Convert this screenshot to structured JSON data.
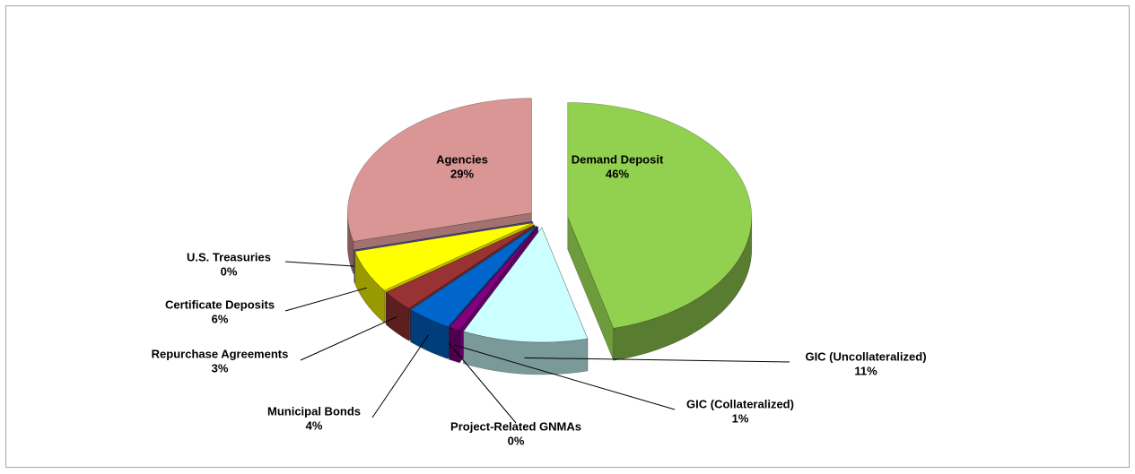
{
  "chart_data": {
    "type": "pie",
    "categories": [
      "Demand Deposit",
      "GIC (Uncollateralized)",
      "GIC (Collateralized)",
      "Project-Related GNMAs",
      "Municipal Bonds",
      "Repurchase Agreements",
      "Certificate Deposits",
      "U.S. Treasuries",
      "Agencies"
    ],
    "values": [
      46,
      11,
      1,
      0,
      4,
      3,
      6,
      0,
      29
    ],
    "value_labels": [
      "46%",
      "11%",
      "1%",
      "0%",
      "4%",
      "3%",
      "6%",
      "0%",
      "29%"
    ],
    "colors": [
      "#92d050",
      "#ccffff",
      "#800080",
      "#ff9999",
      "#0066cc",
      "#993333",
      "#ffff00",
      "#6666cc",
      "#d99694"
    ]
  }
}
